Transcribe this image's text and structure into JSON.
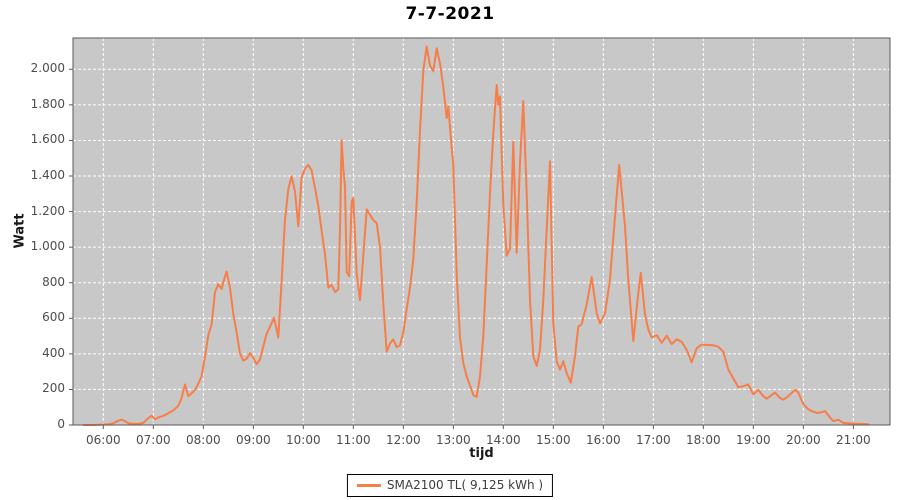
{
  "colors": {
    "series_line": "#F77E49",
    "plot_background": "#C8C8C8",
    "gridline": "#FFFFFF",
    "frame": "#5a5a5a",
    "tick_text": "#4d4d4d"
  },
  "chart_data": {
    "type": "line",
    "title": "7-7-2021",
    "xlabel": "tijd",
    "ylabel": "Watt",
    "grid": "white dashed on gray background",
    "legend": {
      "label": "SMA2100 TL( 9,125 kWh )",
      "position": "bottom-center"
    },
    "x_range_hours": [
      5.394,
      21.733
    ],
    "y_range": [
      0,
      2176
    ],
    "x_ticks": [
      {
        "hour": 6,
        "label": "06:00"
      },
      {
        "hour": 7,
        "label": "07:00"
      },
      {
        "hour": 8,
        "label": "08:00"
      },
      {
        "hour": 9,
        "label": "09:00"
      },
      {
        "hour": 10,
        "label": "10:00"
      },
      {
        "hour": 11,
        "label": "11:00"
      },
      {
        "hour": 12,
        "label": "12:00"
      },
      {
        "hour": 13,
        "label": "13:00"
      },
      {
        "hour": 14,
        "label": "14:00"
      },
      {
        "hour": 15,
        "label": "15:00"
      },
      {
        "hour": 16,
        "label": "16:00"
      },
      {
        "hour": 17,
        "label": "17:00"
      },
      {
        "hour": 18,
        "label": "18:00"
      },
      {
        "hour": 19,
        "label": "19:00"
      },
      {
        "hour": 20,
        "label": "20:00"
      },
      {
        "hour": 21,
        "label": "21:00"
      }
    ],
    "y_ticks": [
      {
        "value": 0,
        "label": "0"
      },
      {
        "value": 200,
        "label": "200"
      },
      {
        "value": 400,
        "label": "400"
      },
      {
        "value": 600,
        "label": "600"
      },
      {
        "value": 800,
        "label": "800"
      },
      {
        "value": 1000,
        "label": "1.000"
      },
      {
        "value": 1200,
        "label": "1.200"
      },
      {
        "value": 1400,
        "label": "1.400"
      },
      {
        "value": 1600,
        "label": "1.600"
      },
      {
        "value": 1800,
        "label": "1.800"
      },
      {
        "value": 2000,
        "label": "2.000"
      }
    ],
    "series": [
      {
        "name": "SMA2100 TL( 9,125 kWh )",
        "color": "#F77E49",
        "points": [
          [
            "05:36",
            0
          ],
          [
            "05:48",
            0
          ],
          [
            "06:00",
            2
          ],
          [
            "06:06",
            4
          ],
          [
            "06:12",
            10
          ],
          [
            "06:18",
            24
          ],
          [
            "06:22",
            30
          ],
          [
            "06:26",
            22
          ],
          [
            "06:30",
            10
          ],
          [
            "06:36",
            6
          ],
          [
            "06:42",
            6
          ],
          [
            "06:48",
            12
          ],
          [
            "06:54",
            38
          ],
          [
            "06:58",
            52
          ],
          [
            "07:02",
            32
          ],
          [
            "07:06",
            42
          ],
          [
            "07:12",
            52
          ],
          [
            "07:18",
            66
          ],
          [
            "07:24",
            82
          ],
          [
            "07:30",
            108
          ],
          [
            "07:34",
            152
          ],
          [
            "07:38",
            228
          ],
          [
            "07:42",
            162
          ],
          [
            "07:46",
            178
          ],
          [
            "07:50",
            198
          ],
          [
            "07:54",
            232
          ],
          [
            "07:58",
            275
          ],
          [
            "08:02",
            385
          ],
          [
            "08:06",
            505
          ],
          [
            "08:10",
            565
          ],
          [
            "08:14",
            748
          ],
          [
            "08:18",
            792
          ],
          [
            "08:22",
            765
          ],
          [
            "08:26",
            835
          ],
          [
            "08:28",
            862
          ],
          [
            "08:32",
            772
          ],
          [
            "08:36",
            625
          ],
          [
            "08:40",
            522
          ],
          [
            "08:44",
            402
          ],
          [
            "08:48",
            362
          ],
          [
            "08:52",
            372
          ],
          [
            "08:56",
            404
          ],
          [
            "09:00",
            378
          ],
          [
            "09:04",
            342
          ],
          [
            "09:08",
            368
          ],
          [
            "09:12",
            442
          ],
          [
            "09:16",
            512
          ],
          [
            "09:20",
            552
          ],
          [
            "09:25",
            603
          ],
          [
            "09:30",
            492
          ],
          [
            "09:34",
            805
          ],
          [
            "09:38",
            1155
          ],
          [
            "09:42",
            1325
          ],
          [
            "09:46",
            1398
          ],
          [
            "09:50",
            1312
          ],
          [
            "09:54",
            1118
          ],
          [
            "09:58",
            1392
          ],
          [
            "10:02",
            1442
          ],
          [
            "10:06",
            1462
          ],
          [
            "10:10",
            1432
          ],
          [
            "10:14",
            1332
          ],
          [
            "10:18",
            1232
          ],
          [
            "10:22",
            1092
          ],
          [
            "10:26",
            962
          ],
          [
            "10:30",
            772
          ],
          [
            "10:34",
            788
          ],
          [
            "10:38",
            748
          ],
          [
            "10:42",
            762
          ],
          [
            "10:44",
            1100
          ],
          [
            "10:46",
            1602
          ],
          [
            "10:48",
            1445
          ],
          [
            "10:50",
            1340
          ],
          [
            "10:52",
            858
          ],
          [
            "10:55",
            838
          ],
          [
            "10:58",
            1258
          ],
          [
            "11:00",
            1275
          ],
          [
            "11:04",
            852
          ],
          [
            "11:08",
            702
          ],
          [
            "11:12",
            952
          ],
          [
            "11:16",
            1212
          ],
          [
            "11:20",
            1182
          ],
          [
            "11:24",
            1152
          ],
          [
            "11:28",
            1135
          ],
          [
            "11:32",
            1002
          ],
          [
            "11:36",
            682
          ],
          [
            "11:40",
            412
          ],
          [
            "11:44",
            458
          ],
          [
            "11:48",
            482
          ],
          [
            "11:52",
            438
          ],
          [
            "11:56",
            448
          ],
          [
            "12:00",
            522
          ],
          [
            "12:04",
            652
          ],
          [
            "12:08",
            772
          ],
          [
            "12:12",
            932
          ],
          [
            "12:16",
            1252
          ],
          [
            "12:20",
            1655
          ],
          [
            "12:24",
            1992
          ],
          [
            "12:28",
            2128
          ],
          [
            "12:32",
            2022
          ],
          [
            "12:36",
            1988
          ],
          [
            "12:40",
            2118
          ],
          [
            "12:44",
            2032
          ],
          [
            "12:48",
            1902
          ],
          [
            "12:52",
            1726
          ],
          [
            "12:54",
            1792
          ],
          [
            "12:58",
            1562
          ],
          [
            "13:00",
            1462
          ],
          [
            "13:04",
            852
          ],
          [
            "13:08",
            492
          ],
          [
            "13:12",
            348
          ],
          [
            "13:16",
            272
          ],
          [
            "13:20",
            222
          ],
          [
            "13:24",
            168
          ],
          [
            "13:28",
            158
          ],
          [
            "13:32",
            272
          ],
          [
            "13:36",
            498
          ],
          [
            "13:40",
            902
          ],
          [
            "13:44",
            1302
          ],
          [
            "13:48",
            1642
          ],
          [
            "13:52",
            1912
          ],
          [
            "13:54",
            1802
          ],
          [
            "13:56",
            1848
          ],
          [
            "14:00",
            1242
          ],
          [
            "14:04",
            952
          ],
          [
            "14:08",
            992
          ],
          [
            "14:12",
            1592
          ],
          [
            "14:16",
            968
          ],
          [
            "14:20",
            1472
          ],
          [
            "14:24",
            1822
          ],
          [
            "14:28",
            1302
          ],
          [
            "14:32",
            702
          ],
          [
            "14:36",
            388
          ],
          [
            "14:40",
            332
          ],
          [
            "14:44",
            422
          ],
          [
            "14:48",
            702
          ],
          [
            "14:52",
            1102
          ],
          [
            "14:56",
            1482
          ],
          [
            "15:00",
            572
          ],
          [
            "15:04",
            358
          ],
          [
            "15:08",
            312
          ],
          [
            "15:12",
            358
          ],
          [
            "15:16",
            292
          ],
          [
            "15:21",
            238
          ],
          [
            "15:26",
            388
          ],
          [
            "15:30",
            552
          ],
          [
            "15:34",
            568
          ],
          [
            "15:40",
            678
          ],
          [
            "15:46",
            832
          ],
          [
            "15:52",
            628
          ],
          [
            "15:56",
            572
          ],
          [
            "16:02",
            628
          ],
          [
            "16:08",
            818
          ],
          [
            "16:14",
            1172
          ],
          [
            "16:19",
            1462
          ],
          [
            "16:26",
            1118
          ],
          [
            "16:30",
            818
          ],
          [
            "16:36",
            472
          ],
          [
            "16:42",
            742
          ],
          [
            "16:45",
            855
          ],
          [
            "16:50",
            622
          ],
          [
            "16:54",
            538
          ],
          [
            "16:58",
            492
          ],
          [
            "17:04",
            505
          ],
          [
            "17:10",
            462
          ],
          [
            "17:16",
            502
          ],
          [
            "17:22",
            455
          ],
          [
            "17:28",
            482
          ],
          [
            "17:34",
            468
          ],
          [
            "17:40",
            422
          ],
          [
            "17:46",
            352
          ],
          [
            "17:52",
            432
          ],
          [
            "17:58",
            452
          ],
          [
            "18:06",
            450
          ],
          [
            "18:12",
            448
          ],
          [
            "18:18",
            440
          ],
          [
            "18:24",
            412
          ],
          [
            "18:30",
            312
          ],
          [
            "18:36",
            262
          ],
          [
            "18:42",
            212
          ],
          [
            "18:48",
            218
          ],
          [
            "18:54",
            228
          ],
          [
            "19:00",
            172
          ],
          [
            "19:06",
            198
          ],
          [
            "19:12",
            162
          ],
          [
            "19:16",
            148
          ],
          [
            "19:22",
            168
          ],
          [
            "19:26",
            182
          ],
          [
            "19:32",
            152
          ],
          [
            "19:36",
            142
          ],
          [
            "19:42",
            162
          ],
          [
            "19:50",
            198
          ],
          [
            "19:54",
            182
          ],
          [
            "20:00",
            118
          ],
          [
            "20:06",
            88
          ],
          [
            "20:10",
            78
          ],
          [
            "20:16",
            68
          ],
          [
            "20:22",
            72
          ],
          [
            "20:26",
            78
          ],
          [
            "20:32",
            42
          ],
          [
            "20:36",
            22
          ],
          [
            "20:42",
            30
          ],
          [
            "20:48",
            12
          ],
          [
            "21:00",
            8
          ],
          [
            "21:10",
            6
          ],
          [
            "21:18",
            4
          ]
        ]
      }
    ]
  }
}
